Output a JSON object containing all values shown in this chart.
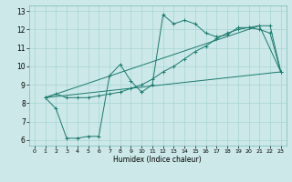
{
  "xlabel": "Humidex (Indice chaleur)",
  "bg_color": "#cce8e8",
  "grid_color": "#a8d4d4",
  "line_color": "#1a7a6e",
  "xlim": [
    -0.5,
    23.5
  ],
  "ylim": [
    5.7,
    13.3
  ],
  "xticks": [
    0,
    1,
    2,
    3,
    4,
    5,
    6,
    7,
    8,
    9,
    10,
    11,
    12,
    13,
    14,
    15,
    16,
    17,
    18,
    19,
    20,
    21,
    22,
    23
  ],
  "yticks": [
    6,
    7,
    8,
    9,
    10,
    11,
    12,
    13
  ],
  "line1_x": [
    1,
    2,
    3,
    4,
    5,
    6,
    7,
    8,
    9,
    10,
    11,
    12,
    13,
    14,
    15,
    16,
    17,
    18,
    19,
    20,
    21,
    22,
    23
  ],
  "line1_y": [
    8.3,
    8.5,
    8.3,
    8.3,
    8.3,
    8.4,
    8.5,
    8.6,
    8.8,
    9.0,
    9.3,
    9.7,
    10.0,
    10.4,
    10.8,
    11.1,
    11.5,
    11.8,
    12.0,
    12.1,
    12.2,
    12.2,
    9.7
  ],
  "line2_x": [
    1,
    2,
    3,
    4,
    5,
    6,
    7,
    8,
    9,
    10,
    11,
    12,
    13,
    14,
    15,
    16,
    17,
    18,
    19,
    20,
    21,
    22,
    23
  ],
  "line2_y": [
    8.3,
    7.7,
    6.1,
    6.1,
    6.2,
    6.2,
    9.5,
    10.1,
    9.2,
    8.6,
    9.0,
    12.8,
    12.3,
    12.5,
    12.3,
    11.8,
    11.6,
    11.7,
    12.1,
    12.1,
    12.0,
    11.8,
    9.7
  ],
  "line3_x": [
    1,
    23
  ],
  "line3_y": [
    8.3,
    9.7
  ],
  "line4_x": [
    1,
    21,
    23
  ],
  "line4_y": [
    8.3,
    12.2,
    9.7
  ]
}
